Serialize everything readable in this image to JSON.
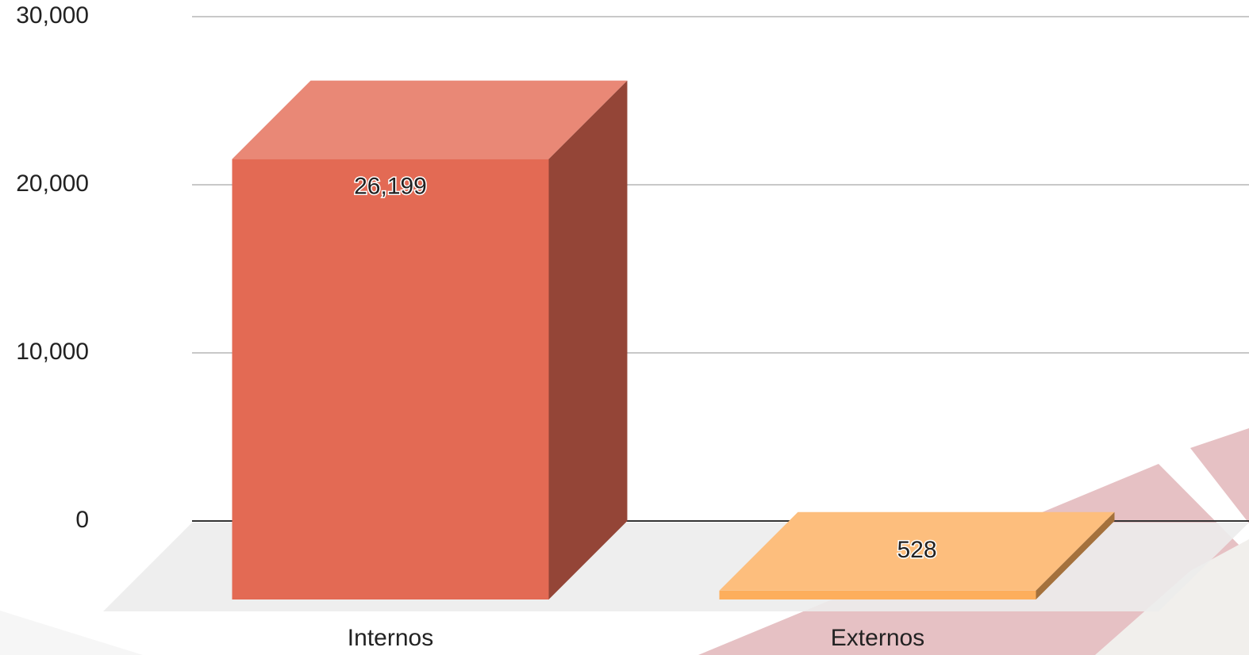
{
  "chart_data": {
    "type": "bar3d",
    "categories": [
      "Internos",
      "Externos"
    ],
    "values": [
      26199,
      528
    ],
    "value_labels": [
      "26,199",
      "528"
    ],
    "colors": [
      "#e36a54",
      "#fdae5c"
    ],
    "ylim": [
      0,
      30000
    ],
    "yticks": [
      0,
      {
        "value": 10000,
        "label": "10,000"
      },
      {
        "value": 20000,
        "label": "20,000"
      },
      {
        "value": 30000,
        "label": "30,000"
      }
    ],
    "grid": true
  }
}
